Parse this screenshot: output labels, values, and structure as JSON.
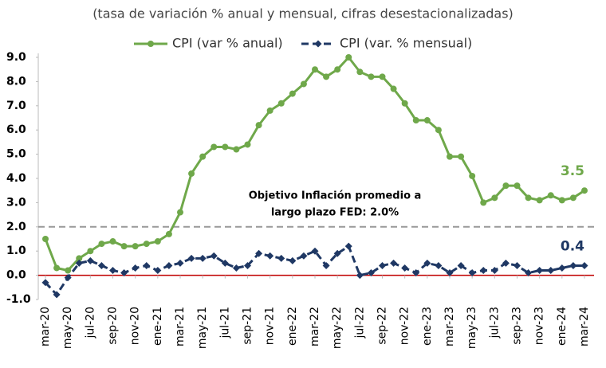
{
  "chart_data": {
    "type": "line",
    "subtitle": "(tasa de variación % anual y mensual, cifras desestacionalizadas)",
    "categories": [
      "mar-20",
      null,
      "may-20",
      null,
      "jul-20",
      null,
      "sep-20",
      null,
      "nov-20",
      null,
      "ene-21",
      null,
      "mar-21",
      null,
      "may-21",
      null,
      "jul-21",
      null,
      "sep-21",
      null,
      "nov-21",
      null,
      "ene-22",
      null,
      "mar-22",
      null,
      "may-22",
      null,
      "jul-22",
      null,
      "sep-22",
      null,
      "nov-22",
      null,
      "ene-23",
      null,
      "mar-23",
      null,
      "may-23",
      null,
      "jul-23",
      null,
      "sep-23",
      null,
      "nov-23",
      null,
      "ene-24",
      null,
      "mar-24"
    ],
    "series": [
      {
        "name": "CPI (var % anual)",
        "color": "#6fa84a",
        "marker": "circle",
        "dashed": false,
        "values": [
          1.5,
          0.3,
          0.2,
          0.7,
          1.0,
          1.3,
          1.4,
          1.2,
          1.2,
          1.3,
          1.4,
          1.7,
          2.6,
          4.2,
          4.9,
          5.3,
          5.3,
          5.2,
          5.4,
          6.2,
          6.8,
          7.1,
          7.5,
          7.9,
          8.5,
          8.2,
          8.5,
          9.0,
          8.4,
          8.2,
          8.2,
          7.7,
          7.1,
          6.4,
          6.4,
          6.0,
          4.9,
          4.9,
          4.1,
          3.0,
          3.2,
          3.7,
          3.7,
          3.2,
          3.1,
          3.3,
          3.1,
          3.2,
          3.5
        ]
      },
      {
        "name": "CPI (var. % mensual)",
        "color": "#1f3864",
        "marker": "diamond",
        "dashed": true,
        "values": [
          -0.3,
          -0.8,
          -0.1,
          0.5,
          0.6,
          0.4,
          0.2,
          0.1,
          0.3,
          0.4,
          0.2,
          0.4,
          0.5,
          0.7,
          0.7,
          0.8,
          0.5,
          0.3,
          0.4,
          0.9,
          0.8,
          0.7,
          0.6,
          0.8,
          1.0,
          0.4,
          0.9,
          1.2,
          0.0,
          0.1,
          0.4,
          0.5,
          0.3,
          0.1,
          0.5,
          0.4,
          0.1,
          0.4,
          0.1,
          0.2,
          0.2,
          0.5,
          0.4,
          0.1,
          0.2,
          0.2,
          0.3,
          0.4,
          0.4
        ]
      }
    ],
    "ylim": [
      -1,
      9
    ],
    "yticks": [
      {
        "value": 9,
        "label": "9.0"
      },
      {
        "value": 8,
        "label": "8.0"
      },
      {
        "value": 7,
        "label": "7.0"
      },
      {
        "value": 6,
        "label": "6.0"
      },
      {
        "value": 5,
        "label": "5.0"
      },
      {
        "value": 4,
        "label": "4.0"
      },
      {
        "value": 3,
        "label": "3.0"
      },
      {
        "value": 2,
        "label": "2.0"
      },
      {
        "value": 1,
        "label": "1.0"
      },
      {
        "value": 0,
        "label": "0.0"
      },
      {
        "value": -1,
        "label": "-1.0"
      }
    ],
    "reference_line": {
      "value": 2.0,
      "color": "#999999"
    },
    "zero_line_color": "#c00000",
    "annotation": [
      "Objetivo Inflación promedio a",
      "largo plazo FED: 2.0%"
    ],
    "legend": "top"
  }
}
